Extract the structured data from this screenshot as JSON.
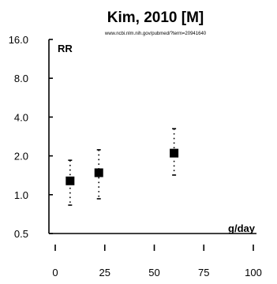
{
  "chart_data": {
    "type": "scatter",
    "title": "Kim, 2010 [M]",
    "subtitle": "www.ncbi.nlm.nih.gov/pubmed/?term=20941640",
    "ylabel": "RR",
    "xlabel": "g/day",
    "y_scale": "log",
    "xlim": [
      0,
      100
    ],
    "ylim": [
      0.5,
      16.0
    ],
    "x_ticks": [
      "0",
      "25",
      "50",
      "75",
      "100"
    ],
    "x_tick_values": [
      0,
      25,
      50,
      75,
      100
    ],
    "y_ticks": [
      "0.5",
      "1.0",
      "2.0",
      "4.0",
      "8.0",
      "16.0"
    ],
    "y_tick_values": [
      0.5,
      1.0,
      2.0,
      4.0,
      8.0,
      16.0
    ],
    "grid": false,
    "points": [
      {
        "x": 7.5,
        "rr": 1.28,
        "lower": 0.83,
        "upper": 1.85
      },
      {
        "x": 22,
        "rr": 1.48,
        "lower": 0.93,
        "upper": 2.23
      },
      {
        "x": 60,
        "rr": 2.1,
        "lower": 1.42,
        "upper": 3.25
      }
    ]
  }
}
